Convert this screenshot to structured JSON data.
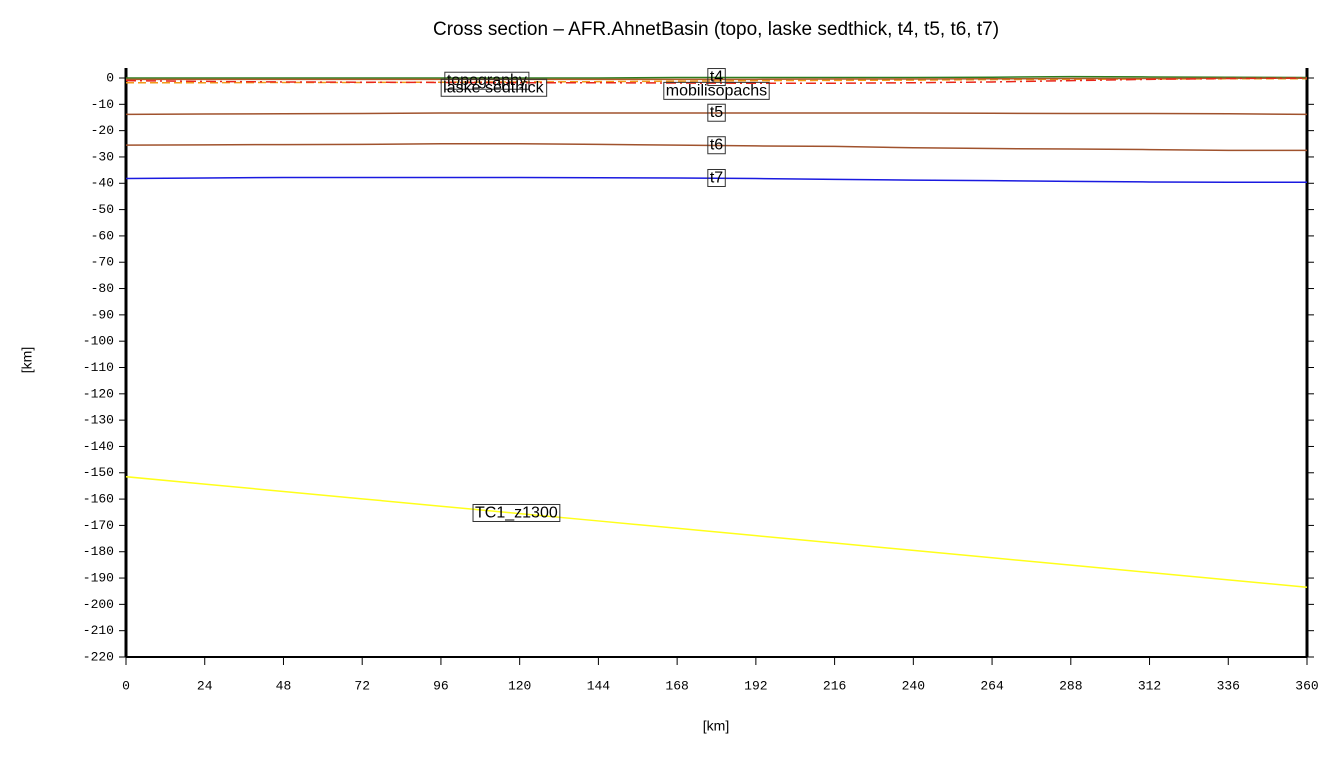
{
  "chart_data": {
    "type": "line",
    "title": "Cross section – AFR.AhnetBasin (topo, laske sedthick, t4, t5, t6, t7)",
    "x_label": "[km]",
    "y_label": "[km]",
    "x": [
      0,
      24,
      48,
      72,
      96,
      120,
      144,
      168,
      192,
      216,
      240,
      264,
      288,
      312,
      336,
      360
    ],
    "xlim": [
      0,
      360
    ],
    "ylim": [
      -220,
      0
    ],
    "xticks": [
      0,
      24,
      48,
      72,
      96,
      120,
      144,
      168,
      192,
      216,
      240,
      264,
      288,
      312,
      336,
      360
    ],
    "yticks": [
      0,
      -10,
      -20,
      -30,
      -40,
      -50,
      -60,
      -70,
      -80,
      -90,
      -100,
      -110,
      -120,
      -130,
      -140,
      -150,
      -160,
      -170,
      -180,
      -190,
      -200,
      -210,
      -220
    ],
    "series": [
      {
        "name": "topography",
        "color": "#2e7d1e",
        "dash": "solid",
        "values": [
          0,
          0,
          0,
          0,
          0,
          0,
          0,
          0.2,
          0.2,
          0.2,
          0.2,
          0.3,
          0.5,
          0.4,
          0.3,
          0.2
        ]
      },
      {
        "name": "laske sedthick",
        "color": "#f29a1a",
        "dash": "dashed",
        "values": [
          -1.8,
          -1.8,
          -1.7,
          -1.7,
          -1.6,
          -1.5,
          -1.4,
          -1.2,
          -1.0,
          -0.9,
          -0.8,
          -0.6,
          -0.5,
          -0.4,
          -0.3,
          -0.3
        ]
      },
      {
        "name": "t4",
        "color": "#b05a2a",
        "dash": "solid",
        "values": [
          -0.5,
          -0.5,
          -0.5,
          -0.5,
          -0.5,
          -0.5,
          -0.5,
          -0.5,
          -0.5,
          -0.4,
          -0.4,
          -0.3,
          -0.2,
          -0.2,
          -0.1,
          -0.1
        ]
      },
      {
        "name": "mobilisopachs",
        "color": "#e8261a",
        "dash": "dashdot",
        "values": [
          -1.0,
          -1.3,
          -1.5,
          -1.6,
          -1.7,
          -1.8,
          -1.8,
          -1.9,
          -2.0,
          -2.0,
          -1.8,
          -1.5,
          -1.0,
          -0.5,
          -0.2,
          0
        ]
      },
      {
        "name": "t5",
        "color": "#a0522d",
        "dash": "solid",
        "values": [
          -13.8,
          -13.7,
          -13.6,
          -13.5,
          -13.3,
          -13.3,
          -13.3,
          -13.3,
          -13.3,
          -13.3,
          -13.3,
          -13.4,
          -13.5,
          -13.5,
          -13.6,
          -13.8
        ]
      },
      {
        "name": "t6",
        "color": "#a0522d",
        "dash": "solid",
        "values": [
          -25.5,
          -25.4,
          -25.3,
          -25.2,
          -25.0,
          -25.0,
          -25.2,
          -25.5,
          -25.8,
          -26.0,
          -26.5,
          -26.8,
          -27.0,
          -27.2,
          -27.5,
          -27.5
        ]
      },
      {
        "name": "t7",
        "color": "#1a1ae0",
        "dash": "solid",
        "values": [
          -38.2,
          -38.0,
          -37.8,
          -37.8,
          -37.8,
          -37.8,
          -37.9,
          -38.0,
          -38.2,
          -38.5,
          -38.8,
          -39.0,
          -39.3,
          -39.5,
          -39.6,
          -39.6
        ]
      },
      {
        "name": "TC1_z1300",
        "color": "#ffff1a",
        "dash": "solid",
        "values": [
          -151.5,
          -154.3,
          -157.1,
          -159.9,
          -162.7,
          -165.5,
          -168.3,
          -171.1,
          -173.9,
          -176.7,
          -179.5,
          -182.3,
          -185.1,
          -187.9,
          -190.7,
          -193.5
        ]
      }
    ]
  }
}
